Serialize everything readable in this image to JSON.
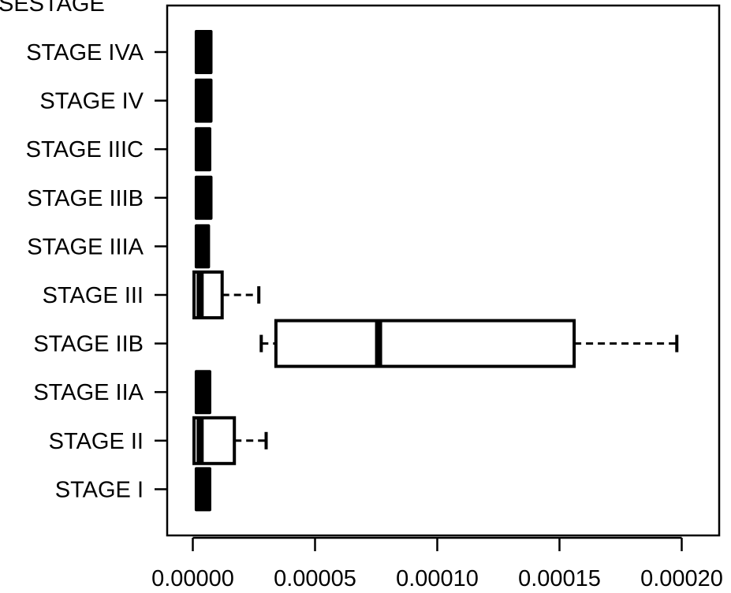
{
  "chart_data": {
    "type": "boxplot",
    "orientation": "horizontal",
    "title": "SESTAGE",
    "xlabel": "",
    "ylabel": "",
    "xlim": [
      -1e-05,
      0.00021
    ],
    "xticks": [
      0.0,
      5e-05,
      0.0001,
      0.00015,
      0.0002
    ],
    "xtick_labels": [
      "0.00000",
      "0.00005",
      "0.00010",
      "0.00015",
      "0.00020"
    ],
    "grid": false,
    "categories": [
      "STAGE IVA",
      "STAGE IV",
      "STAGE IIIC",
      "STAGE IIIB",
      "STAGE IIIA",
      "STAGE III",
      "STAGE IIB",
      "STAGE IIA",
      "STAGE II",
      "STAGE I"
    ],
    "boxes": [
      {
        "category": "STAGE IVA",
        "min": 3e-07,
        "q1": 3e-07,
        "median": 3e-06,
        "q3": 5e-06,
        "max": 5e-06
      },
      {
        "category": "STAGE IV",
        "min": 3e-07,
        "q1": 3e-07,
        "median": 3e-06,
        "q3": 5e-06,
        "max": 5e-06
      },
      {
        "category": "STAGE IIIC",
        "min": 3e-07,
        "q1": 3e-07,
        "median": 3e-06,
        "q3": 4.5e-06,
        "max": 4.5e-06
      },
      {
        "category": "STAGE IIIB",
        "min": 3e-07,
        "q1": 3e-07,
        "median": 3e-06,
        "q3": 5e-06,
        "max": 5e-06
      },
      {
        "category": "STAGE IIIA",
        "min": 3e-07,
        "q1": 3e-07,
        "median": 3e-06,
        "q3": 4e-06,
        "max": 4e-06
      },
      {
        "category": "STAGE III",
        "min": 3e-07,
        "q1": 5e-07,
        "median": 3e-06,
        "q3": 1.2e-05,
        "max": 2.7e-05
      },
      {
        "category": "STAGE IIB",
        "min": 2.8e-05,
        "q1": 3.4e-05,
        "median": 7.6e-05,
        "q3": 0.000156,
        "max": 0.000198
      },
      {
        "category": "STAGE IIA",
        "min": 3e-07,
        "q1": 3e-07,
        "median": 3e-06,
        "q3": 4.5e-06,
        "max": 4.5e-06
      },
      {
        "category": "STAGE II",
        "min": 3e-07,
        "q1": 5e-07,
        "median": 3e-06,
        "q3": 1.7e-05,
        "max": 3e-05
      },
      {
        "category": "STAGE I",
        "min": 3e-07,
        "q1": 3e-07,
        "median": 3e-06,
        "q3": 4.5e-06,
        "max": 4.5e-06
      }
    ]
  }
}
